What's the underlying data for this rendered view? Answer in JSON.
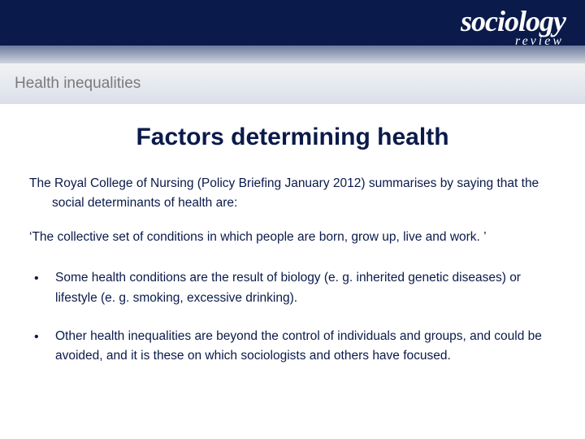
{
  "logo": {
    "main": "sociology",
    "sub": "review"
  },
  "breadcrumb": "Health inequalities",
  "title": "Factors determining health",
  "intro1": "The Royal College of Nursing (Policy Briefing January 2012) summarises by saying that the social determinants of health are:",
  "intro2": "‘The collective set of conditions in which people are born, grow up, live and work. ’",
  "bullet1": "Some health conditions are the result of biology (e. g. inherited genetic diseases) or lifestyle (e. g. smoking, excessive drinking).",
  "bullet2": "Other health inequalities are beyond the control of individuals and groups, and could be avoided, and it is these on which sociologists and others have focused.",
  "colors": {
    "navy": "#0a1a4a",
    "breadcrumb_text": "#7a7a7a",
    "white": "#ffffff"
  },
  "typography": {
    "title_size": 30,
    "body_size": 15.5,
    "breadcrumb_size": 19,
    "logo_main_size": 36,
    "logo_sub_size": 16
  }
}
